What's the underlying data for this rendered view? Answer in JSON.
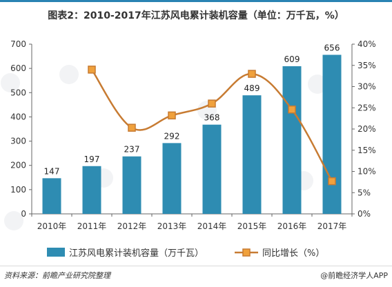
{
  "title": "图表2：2010-2017年江苏风电累计装机容量（单位：万千瓦，%）",
  "source": "资料来源：前瞻产业研究院整理",
  "app_mark": "@前瞻经济学人APP",
  "colors": {
    "bar": "#2e8cb2",
    "line": "#c77b32",
    "marker_fill": "#f0a13c",
    "axis": "#333333"
  },
  "chart_data": {
    "type": "bar+line",
    "categories": [
      "2010年",
      "2011年",
      "2012年",
      "2013年",
      "2014年",
      "2015年",
      "2016年",
      "2017年"
    ],
    "series": [
      {
        "name": "江苏风电累计装机容量（万千瓦）",
        "type": "bar",
        "axis": "left",
        "values": [
          147,
          197,
          237,
          292,
          368,
          489,
          609,
          656
        ]
      },
      {
        "name": "同比增长（%）",
        "type": "line",
        "axis": "right",
        "values": [
          null,
          34.0,
          20.3,
          23.2,
          26.0,
          33.0,
          24.6,
          7.7
        ]
      }
    ],
    "left_axis": {
      "ylim": [
        0,
        700
      ],
      "ticks": [
        "0",
        "100",
        "200",
        "300",
        "400",
        "500",
        "600",
        "700"
      ]
    },
    "right_axis": {
      "ylim": [
        0,
        40
      ],
      "ticks": [
        "0%",
        "5%",
        "10%",
        "15%",
        "20%",
        "25%",
        "30%",
        "35%",
        "40%"
      ]
    },
    "data_labels": [
      "147",
      "197",
      "237",
      "292",
      "368",
      "489",
      "609",
      "656"
    ],
    "legend_position": "bottom",
    "grid": false
  }
}
